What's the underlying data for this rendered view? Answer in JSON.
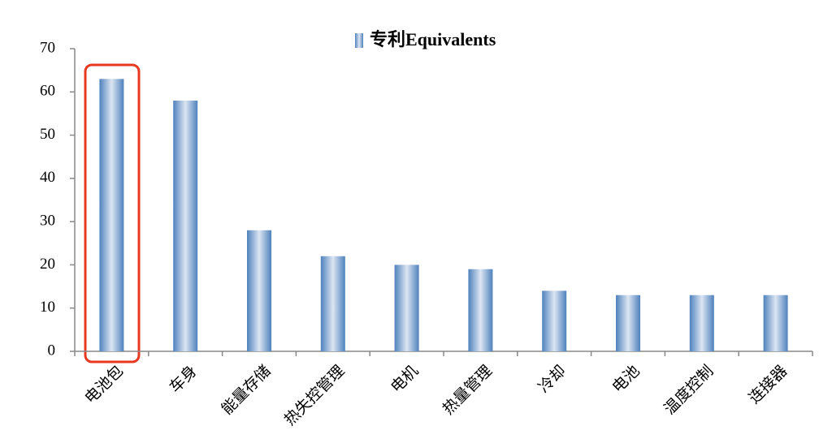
{
  "chart_data": {
    "type": "bar",
    "categories": [
      "电池包",
      "车身",
      "能量存储",
      "热失控管理",
      "电机",
      "热量管理",
      "冷却",
      "电池",
      "温度控制",
      "连接器"
    ],
    "series": [
      {
        "name": "专利Equivalents",
        "color": "#4f81bd",
        "values": [
          63,
          58,
          28,
          22,
          20,
          19,
          14,
          13,
          13,
          13
        ]
      }
    ],
    "ylim": [
      0,
      70
    ],
    "yticks": [
      0,
      10,
      20,
      30,
      40,
      50,
      60,
      70
    ],
    "grid": false
  }
}
